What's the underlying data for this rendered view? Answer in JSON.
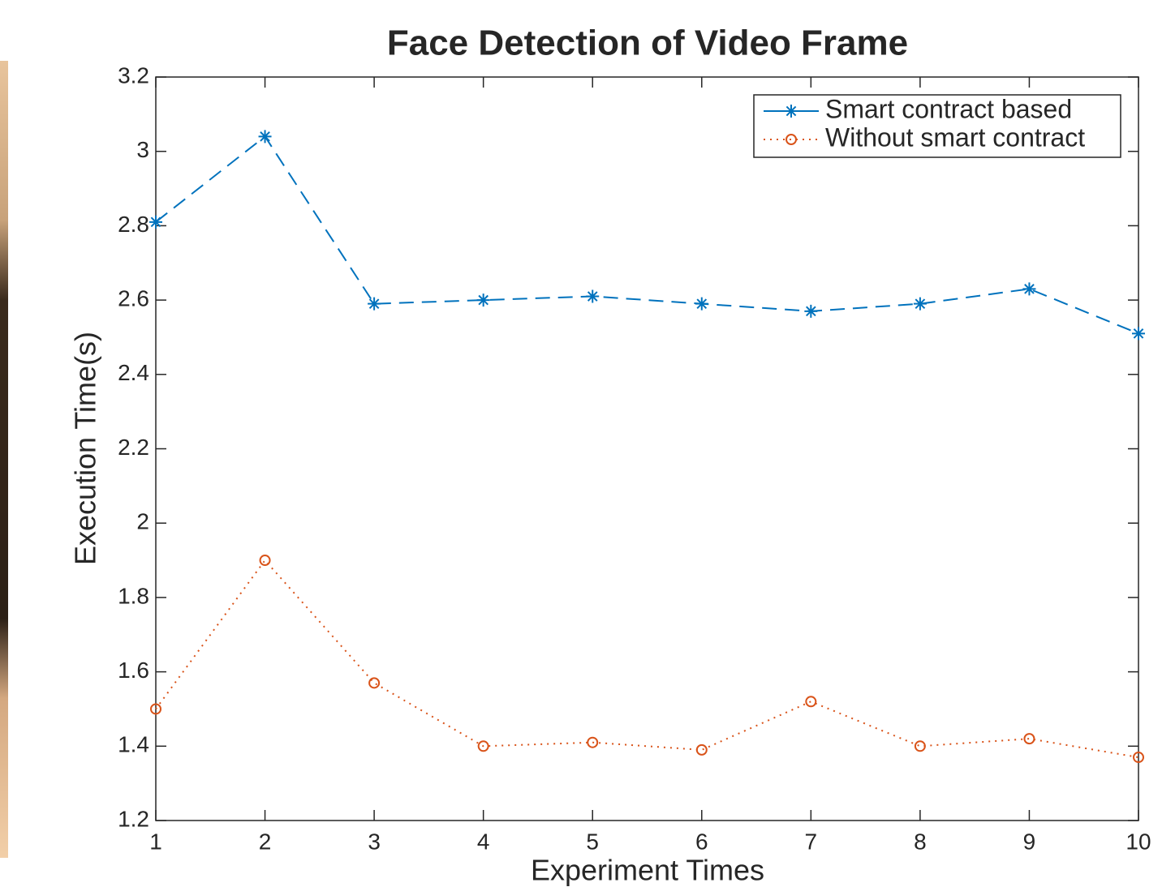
{
  "chart_data": {
    "type": "line",
    "title": "Face Detection of Video Frame",
    "x_label": "Experiment Times",
    "y_label": "Execution Time(s)",
    "x": [
      1,
      2,
      3,
      4,
      5,
      6,
      7,
      8,
      9,
      10
    ],
    "series": [
      {
        "name": "Smart contract based",
        "color": "#0072bd",
        "linestyle": "dashed",
        "marker": "asterisk",
        "values": [
          2.81,
          3.04,
          2.59,
          2.6,
          2.61,
          2.59,
          2.57,
          2.59,
          2.63,
          2.51
        ]
      },
      {
        "name": "Without smart contract",
        "color": "#d95319",
        "linestyle": "dotted",
        "marker": "circle",
        "values": [
          1.5,
          1.9,
          1.57,
          1.4,
          1.41,
          1.39,
          1.52,
          1.4,
          1.42,
          1.37
        ]
      }
    ],
    "xlim": [
      1,
      10
    ],
    "xticks": [
      1,
      2,
      3,
      4,
      5,
      6,
      7,
      8,
      9,
      10
    ],
    "ylim": [
      1.2,
      3.2
    ],
    "yticks": [
      1.2,
      1.4,
      1.6,
      1.8,
      2,
      2.2,
      2.4,
      2.6,
      2.8,
      3,
      3.2
    ],
    "legend": "upper right"
  }
}
